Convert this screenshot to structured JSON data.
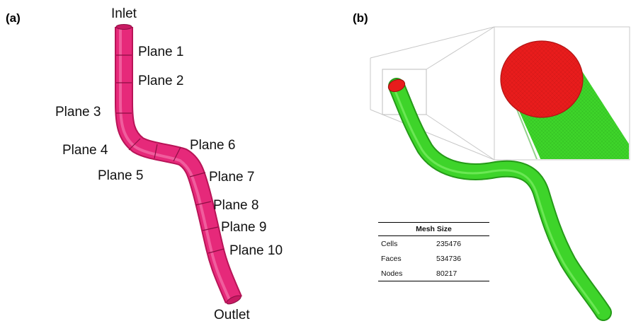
{
  "panels": {
    "a_label": "(a)",
    "b_label": "(b)"
  },
  "panel_a": {
    "inlet": "Inlet",
    "outlet": "Outlet",
    "planes": [
      "Plane 1",
      "Plane 2",
      "Plane 3",
      "Plane 4",
      "Plane 5",
      "Plane 6",
      "Plane 7",
      "Plane 8",
      "Plane 9",
      "Plane 10"
    ],
    "vessel_color": "#e6297a"
  },
  "panel_b": {
    "vessel_color": "#3ed42a",
    "cap_color": "#e81c1c",
    "table": {
      "title": "Mesh Size",
      "rows": [
        {
          "label": "Cells",
          "value": "235476"
        },
        {
          "label": "Faces",
          "value": "534736"
        },
        {
          "label": "Nodes",
          "value": "80217"
        }
      ]
    }
  }
}
